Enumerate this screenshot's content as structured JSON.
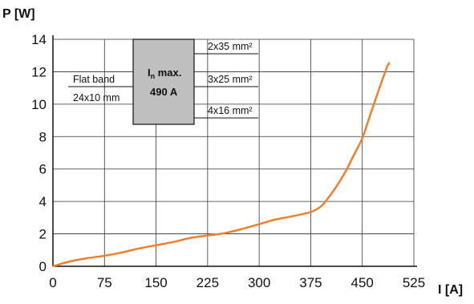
{
  "chart_data": {
    "type": "line",
    "xlabel": "I [A]",
    "ylabel": "P [W]",
    "xlim": [
      0,
      525
    ],
    "ylim": [
      0,
      14
    ],
    "x_ticks": [
      0,
      75,
      150,
      225,
      300,
      375,
      450,
      525
    ],
    "y_ticks": [
      0,
      2,
      4,
      6,
      8,
      10,
      12,
      14
    ],
    "grid": true,
    "series": [
      {
        "color": "#f0802a",
        "points": [
          [
            0,
            0
          ],
          [
            25,
            0.3
          ],
          [
            50,
            0.5
          ],
          [
            75,
            0.65
          ],
          [
            100,
            0.85
          ],
          [
            125,
            1.1
          ],
          [
            150,
            1.3
          ],
          [
            175,
            1.5
          ],
          [
            200,
            1.75
          ],
          [
            225,
            1.9
          ],
          [
            250,
            2.05
          ],
          [
            275,
            2.3
          ],
          [
            300,
            2.6
          ],
          [
            325,
            2.9
          ],
          [
            350,
            3.1
          ],
          [
            375,
            3.35
          ],
          [
            390,
            3.7
          ],
          [
            400,
            4.2
          ],
          [
            412,
            4.9
          ],
          [
            425,
            5.8
          ],
          [
            437,
            6.8
          ],
          [
            450,
            7.9
          ],
          [
            462,
            9.4
          ],
          [
            475,
            11.0
          ],
          [
            487,
            12.4
          ],
          [
            490,
            12.5
          ]
        ]
      }
    ],
    "annotations": {
      "box": {
        "line1_main": "I",
        "line1_sub": "n",
        "line1_rest": " max.",
        "line2": "490 A"
      },
      "left_labels": [
        "Flat band",
        "24x10 mm"
      ],
      "right_labels": [
        "2x35 mm²",
        "3x25 mm²",
        "4x16 mm²"
      ]
    }
  }
}
